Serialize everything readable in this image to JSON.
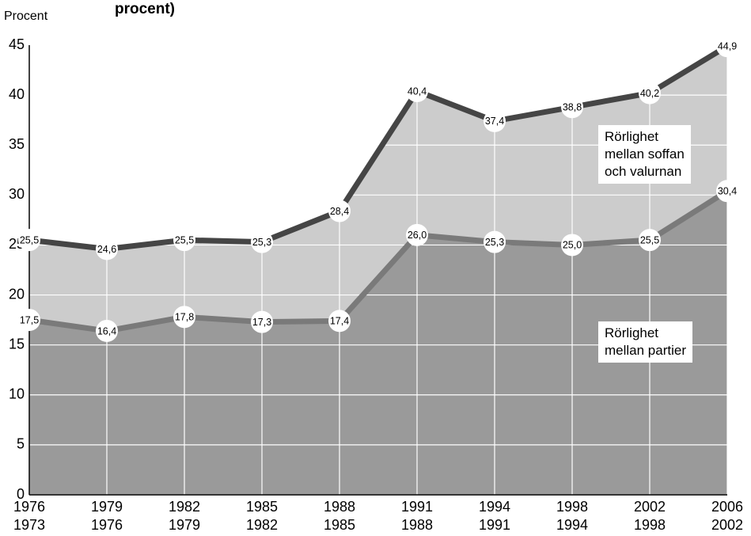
{
  "chart_data": {
    "type": "area",
    "title": "procent)",
    "y_label": "Procent",
    "categories": [
      [
        "1976",
        "1973"
      ],
      [
        "1979",
        "1976"
      ],
      [
        "1982",
        "1979"
      ],
      [
        "1985",
        "1982"
      ],
      [
        "1988",
        "1985"
      ],
      [
        "1991",
        "1988"
      ],
      [
        "1994",
        "1991"
      ],
      [
        "1998",
        "1994"
      ],
      [
        "2002",
        "1998"
      ],
      [
        "2006",
        "2002"
      ]
    ],
    "series": [
      {
        "name": "Rörlighet\nmellan soffan\noch valurnan",
        "color": "#cccccc",
        "line_color": "#454545",
        "values": [
          25.5,
          24.6,
          25.5,
          25.3,
          28.4,
          40.4,
          37.4,
          38.8,
          40.2,
          44.9
        ],
        "value_labels": [
          "25,5",
          "24,6",
          "25,5",
          "25,3",
          "28,4",
          "40,4",
          "37,4",
          "38,8",
          "40,2",
          "44,9"
        ]
      },
      {
        "name": "Rörlighet\nmellan partier",
        "color": "#9a9a9a",
        "line_color": "#7a7a7a",
        "values": [
          17.5,
          16.4,
          17.8,
          17.3,
          17.4,
          26.0,
          25.3,
          25.0,
          25.5,
          30.4
        ],
        "value_labels": [
          "17,5",
          "16,4",
          "17,8",
          "17,3",
          "17,4",
          "26,0",
          "25,3",
          "25,0",
          "25,5",
          "30,4"
        ]
      }
    ],
    "ylim": [
      0,
      45
    ],
    "yticks": [
      0,
      5,
      10,
      15,
      20,
      25,
      30,
      35,
      40,
      45
    ],
    "grid": true
  }
}
